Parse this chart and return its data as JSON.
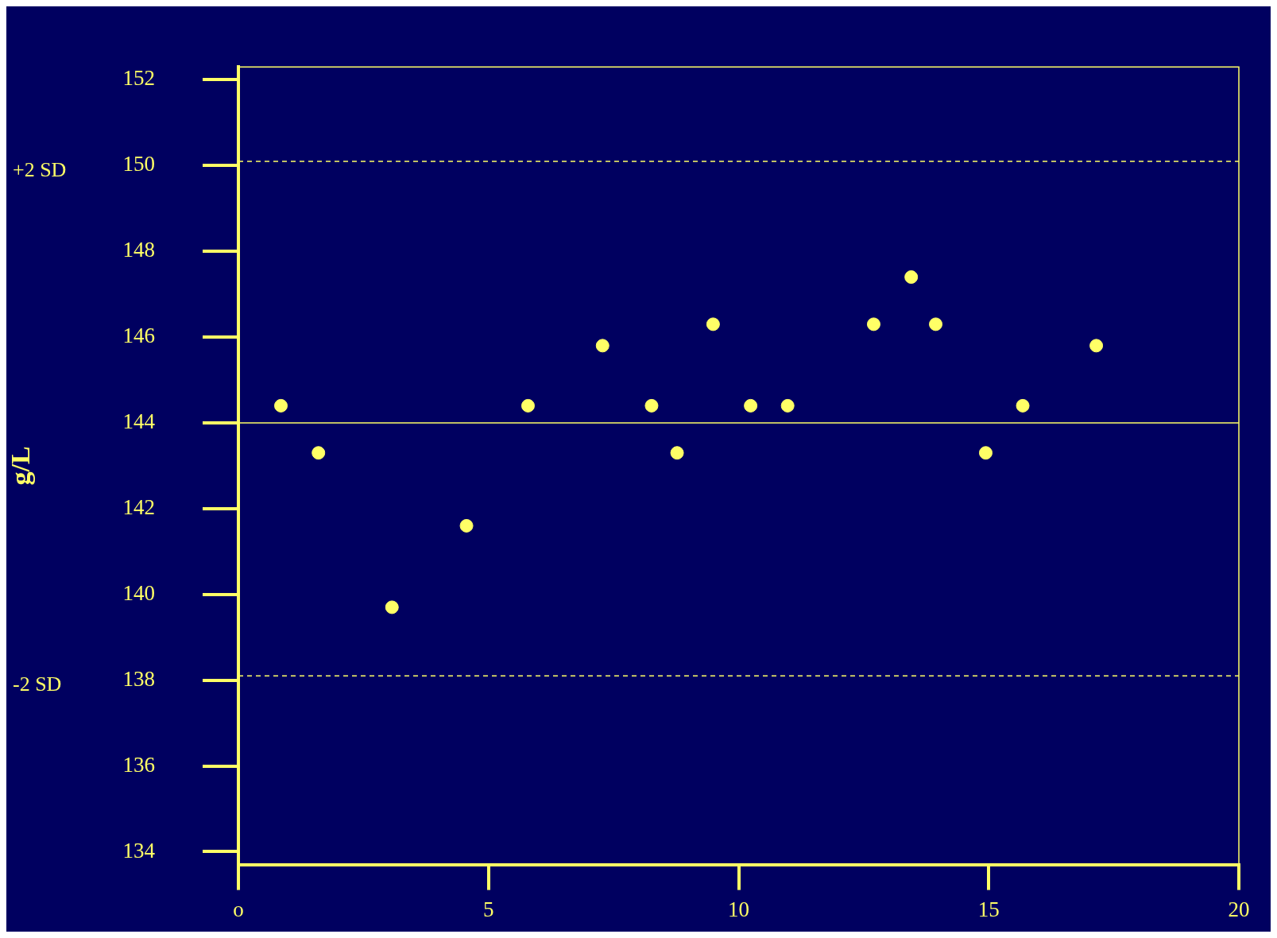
{
  "chart_data": {
    "type": "scatter",
    "ylabel": "g/L",
    "x": [
      0.85,
      1.6,
      3.07,
      4.56,
      5.79,
      7.28,
      8.26,
      8.77,
      9.49,
      10.24,
      10.98,
      12.7,
      13.45,
      13.94,
      14.94,
      15.68,
      17.15
    ],
    "series": [
      {
        "color": "#ffff66",
        "values": [
          144.4,
          143.3,
          139.7,
          141.6,
          144.4,
          145.8,
          144.4,
          143.3,
          146.3,
          144.4,
          144.4,
          146.3,
          147.4,
          146.3,
          143.3,
          144.4,
          145.8
        ]
      }
    ],
    "xlim": [
      0,
      20
    ],
    "xticks": [
      {
        "value": 0,
        "label": "o"
      },
      5,
      10,
      15,
      20
    ],
    "ylim": [
      133.7,
      152.3
    ],
    "yticks": [
      134,
      136,
      138,
      140,
      142,
      144,
      146,
      148,
      150,
      152
    ],
    "ref_lines": [
      {
        "axis": "y",
        "value": 144,
        "label": null,
        "color": "#ffff66",
        "line_style": "solid"
      },
      {
        "axis": "y",
        "value": 150.1,
        "label": "+2 SD",
        "color": "#ffff66",
        "line_style": "dashed"
      },
      {
        "axis": "y",
        "value": 138.1,
        "label": "-2 SD",
        "color": "#ffff66",
        "line_style": "dashed"
      }
    ],
    "grid": false,
    "legend": false,
    "marker": "circle"
  }
}
